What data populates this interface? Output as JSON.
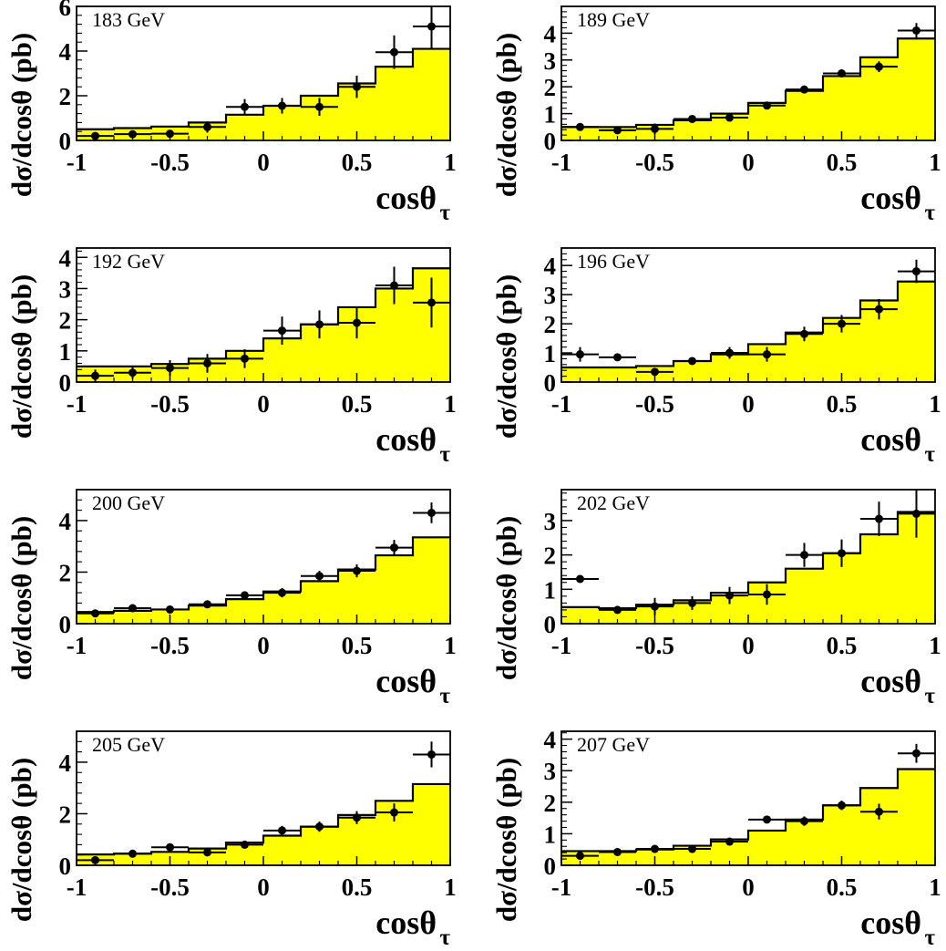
{
  "figure": {
    "ylabel": "dσ/dcosθ (pb)",
    "xlabel_main": "cosθ",
    "xlabel_sub": "τ",
    "x_ticks": [
      "-1",
      "-0.5",
      "0",
      "0.5",
      "1"
    ]
  },
  "chart_data": [
    {
      "type": "bar",
      "label": "183 GeV",
      "xlim": [
        -1,
        1
      ],
      "ylim": [
        0,
        6
      ],
      "y_ticks": [
        0,
        2,
        4,
        6
      ],
      "bin_edges": [
        -1,
        -0.8,
        -0.6,
        -0.4,
        -0.2,
        0,
        0.2,
        0.4,
        0.6,
        0.8,
        1
      ],
      "prediction": [
        0.5,
        0.55,
        0.62,
        0.8,
        1.15,
        1.55,
        2.0,
        2.55,
        3.3,
        4.1
      ],
      "data": {
        "x": [
          -0.9,
          -0.7,
          -0.5,
          -0.3,
          -0.1,
          0.1,
          0.3,
          0.5,
          0.7,
          0.9
        ],
        "y": [
          0.2,
          0.28,
          0.3,
          0.6,
          1.5,
          1.55,
          1.5,
          2.4,
          3.95,
          5.1
        ],
        "err": [
          0.15,
          0.15,
          0.15,
          0.25,
          0.35,
          0.35,
          0.4,
          0.5,
          0.75,
          1.0
        ]
      }
    },
    {
      "type": "bar",
      "label": "189 GeV",
      "xlim": [
        -1,
        1
      ],
      "ylim": [
        0,
        5
      ],
      "y_ticks": [
        0,
        1,
        2,
        3,
        4
      ],
      "bin_edges": [
        -1,
        -0.8,
        -0.6,
        -0.4,
        -0.2,
        0,
        0.2,
        0.4,
        0.6,
        0.8,
        1
      ],
      "prediction": [
        0.5,
        0.5,
        0.58,
        0.75,
        1.0,
        1.4,
        1.85,
        2.4,
        3.1,
        3.8
      ],
      "data": {
        "x": [
          -0.9,
          -0.7,
          -0.5,
          -0.3,
          -0.1,
          0.1,
          0.3,
          0.5,
          0.7,
          0.9
        ],
        "y": [
          0.5,
          0.38,
          0.43,
          0.8,
          0.85,
          1.3,
          1.9,
          2.5,
          2.75,
          4.1
        ],
        "err": [
          0.1,
          0.12,
          0.2,
          0.1,
          0.12,
          0.12,
          0.1,
          0.15,
          0.2,
          0.28
        ]
      }
    },
    {
      "type": "bar",
      "label": "192 GeV",
      "xlim": [
        -1,
        1
      ],
      "ylim": [
        0,
        4.3
      ],
      "y_ticks": [
        0,
        1,
        2,
        3,
        4
      ],
      "bin_edges": [
        -1,
        -0.8,
        -0.6,
        -0.4,
        -0.2,
        0,
        0.2,
        0.4,
        0.6,
        0.8,
        1
      ],
      "prediction": [
        0.5,
        0.5,
        0.58,
        0.75,
        1.0,
        1.4,
        1.85,
        2.4,
        3.0,
        3.65
      ],
      "data": {
        "x": [
          -0.9,
          -0.7,
          -0.5,
          -0.3,
          -0.1,
          0.1,
          0.3,
          0.5,
          0.7,
          0.9
        ],
        "y": [
          0.2,
          0.3,
          0.45,
          0.6,
          0.75,
          1.65,
          1.85,
          1.9,
          3.1,
          2.55
        ],
        "err": [
          0.2,
          0.2,
          0.25,
          0.3,
          0.3,
          0.45,
          0.45,
          0.5,
          0.6,
          0.8
        ]
      }
    },
    {
      "type": "bar",
      "label": "196 GeV",
      "xlim": [
        -1,
        1
      ],
      "ylim": [
        0,
        4.6
      ],
      "y_ticks": [
        0,
        1,
        2,
        3,
        4
      ],
      "bin_edges": [
        -1,
        -0.8,
        -0.6,
        -0.4,
        -0.2,
        0,
        0.2,
        0.4,
        0.6,
        0.8,
        1
      ],
      "prediction": [
        0.5,
        0.5,
        0.55,
        0.72,
        0.95,
        1.3,
        1.7,
        2.2,
        2.8,
        3.45
      ],
      "data": {
        "x": [
          -0.9,
          -0.7,
          -0.5,
          -0.3,
          -0.1,
          0.1,
          0.3,
          0.5,
          0.7,
          0.9
        ],
        "y": [
          0.95,
          0.85,
          0.35,
          0.72,
          1.0,
          0.95,
          1.65,
          2.0,
          2.5,
          3.8
        ],
        "err": [
          0.25,
          0.1,
          0.1,
          0.12,
          0.2,
          0.25,
          0.25,
          0.3,
          0.35,
          0.4
        ]
      }
    },
    {
      "type": "bar",
      "label": "200 GeV",
      "xlim": [
        -1,
        1
      ],
      "ylim": [
        0,
        5.2
      ],
      "y_ticks": [
        0,
        2,
        4
      ],
      "bin_edges": [
        -1,
        -0.8,
        -0.6,
        -0.4,
        -0.2,
        0,
        0.2,
        0.4,
        0.6,
        0.8,
        1
      ],
      "prediction": [
        0.45,
        0.5,
        0.55,
        0.7,
        0.95,
        1.25,
        1.65,
        2.1,
        2.65,
        3.35
      ],
      "data": {
        "x": [
          -0.9,
          -0.7,
          -0.5,
          -0.3,
          -0.1,
          0.1,
          0.3,
          0.5,
          0.7,
          0.9
        ],
        "y": [
          0.4,
          0.6,
          0.55,
          0.75,
          1.1,
          1.2,
          1.85,
          2.05,
          2.95,
          4.3
        ],
        "err": [
          0.15,
          0.1,
          0.15,
          0.12,
          0.15,
          0.18,
          0.2,
          0.25,
          0.3,
          0.4
        ]
      }
    },
    {
      "type": "bar",
      "label": "202 GeV",
      "xlim": [
        -1,
        1
      ],
      "ylim": [
        0,
        3.9
      ],
      "y_ticks": [
        0,
        1,
        2,
        3
      ],
      "bin_edges": [
        -1,
        -0.8,
        -0.6,
        -0.4,
        -0.2,
        0,
        0.2,
        0.4,
        0.6,
        0.8,
        1
      ],
      "prediction": [
        0.48,
        0.45,
        0.55,
        0.68,
        0.9,
        1.2,
        1.6,
        2.05,
        2.6,
        3.25
      ],
      "data": {
        "x": [
          -0.9,
          -0.7,
          -0.5,
          -0.3,
          -0.1,
          0.1,
          0.3,
          0.5,
          0.7,
          0.9
        ],
        "y": [
          1.3,
          0.4,
          0.5,
          0.6,
          0.82,
          0.85,
          2.0,
          2.05,
          3.05,
          3.2
        ],
        "err": [
          0.0,
          0.1,
          0.25,
          0.2,
          0.25,
          0.3,
          0.35,
          0.4,
          0.5,
          0.7
        ]
      }
    },
    {
      "type": "bar",
      "label": "205 GeV",
      "xlim": [
        -1,
        1
      ],
      "ylim": [
        0,
        5.2
      ],
      "y_ticks": [
        0,
        2,
        4
      ],
      "bin_edges": [
        -1,
        -0.8,
        -0.6,
        -0.4,
        -0.2,
        0,
        0.2,
        0.4,
        0.6,
        0.8,
        1
      ],
      "prediction": [
        0.42,
        0.45,
        0.52,
        0.65,
        0.88,
        1.15,
        1.5,
        1.95,
        2.5,
        3.15
      ],
      "data": {
        "x": [
          -0.9,
          -0.7,
          -0.5,
          -0.3,
          -0.1,
          0.1,
          0.3,
          0.5,
          0.7,
          0.9
        ],
        "y": [
          0.2,
          0.45,
          0.7,
          0.5,
          0.8,
          1.35,
          1.5,
          1.85,
          2.05,
          4.3
        ],
        "err": [
          0.1,
          0.08,
          0.08,
          0.1,
          0.1,
          0.18,
          0.2,
          0.25,
          0.35,
          0.5
        ]
      }
    },
    {
      "type": "bar",
      "label": "207 GeV",
      "xlim": [
        -1,
        1
      ],
      "ylim": [
        0,
        4.25
      ],
      "y_ticks": [
        0,
        1,
        2,
        3,
        4
      ],
      "bin_edges": [
        -1,
        -0.8,
        -0.6,
        -0.4,
        -0.2,
        0,
        0.2,
        0.4,
        0.6,
        0.8,
        1
      ],
      "prediction": [
        0.45,
        0.45,
        0.5,
        0.62,
        0.82,
        1.1,
        1.45,
        1.9,
        2.45,
        3.05
      ],
      "data": {
        "x": [
          -0.9,
          -0.7,
          -0.5,
          -0.3,
          -0.1,
          0.1,
          0.3,
          0.5,
          0.7,
          0.9
        ],
        "y": [
          0.3,
          0.42,
          0.52,
          0.52,
          0.75,
          1.45,
          1.4,
          1.9,
          1.7,
          3.55
        ],
        "err": [
          0.12,
          0.07,
          0.07,
          0.07,
          0.08,
          0.12,
          0.15,
          0.15,
          0.25,
          0.3
        ]
      }
    }
  ]
}
